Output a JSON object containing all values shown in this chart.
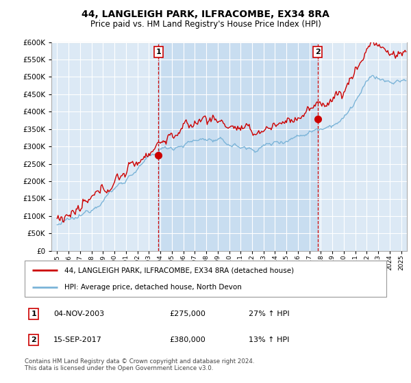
{
  "title": "44, LANGLEIGH PARK, ILFRACOMBE, EX34 8RA",
  "subtitle": "Price paid vs. HM Land Registry's House Price Index (HPI)",
  "legend_line1": "44, LANGLEIGH PARK, ILFRACOMBE, EX34 8RA (detached house)",
  "legend_line2": "HPI: Average price, detached house, North Devon",
  "annotation1_date": "04-NOV-2003",
  "annotation1_price": "£275,000",
  "annotation1_hpi": "27% ↑ HPI",
  "annotation1_year": 2003.83,
  "annotation2_date": "15-SEP-2017",
  "annotation2_price": "£380,000",
  "annotation2_hpi": "13% ↑ HPI",
  "annotation2_year": 2017.71,
  "sale1_value": 275000,
  "sale2_value": 380000,
  "footer": "Contains HM Land Registry data © Crown copyright and database right 2024.\nThis data is licensed under the Open Government Licence v3.0.",
  "hpi_color": "#7bb4d8",
  "price_color": "#cc0000",
  "bg_color": "#dce9f5",
  "shade_color": "#c8ddf0",
  "ylim": [
    0,
    600000
  ],
  "yticks": [
    0,
    50000,
    100000,
    150000,
    200000,
    250000,
    300000,
    350000,
    400000,
    450000,
    500000,
    550000,
    600000
  ],
  "xlim_start": 1994.5,
  "xlim_end": 2025.5
}
